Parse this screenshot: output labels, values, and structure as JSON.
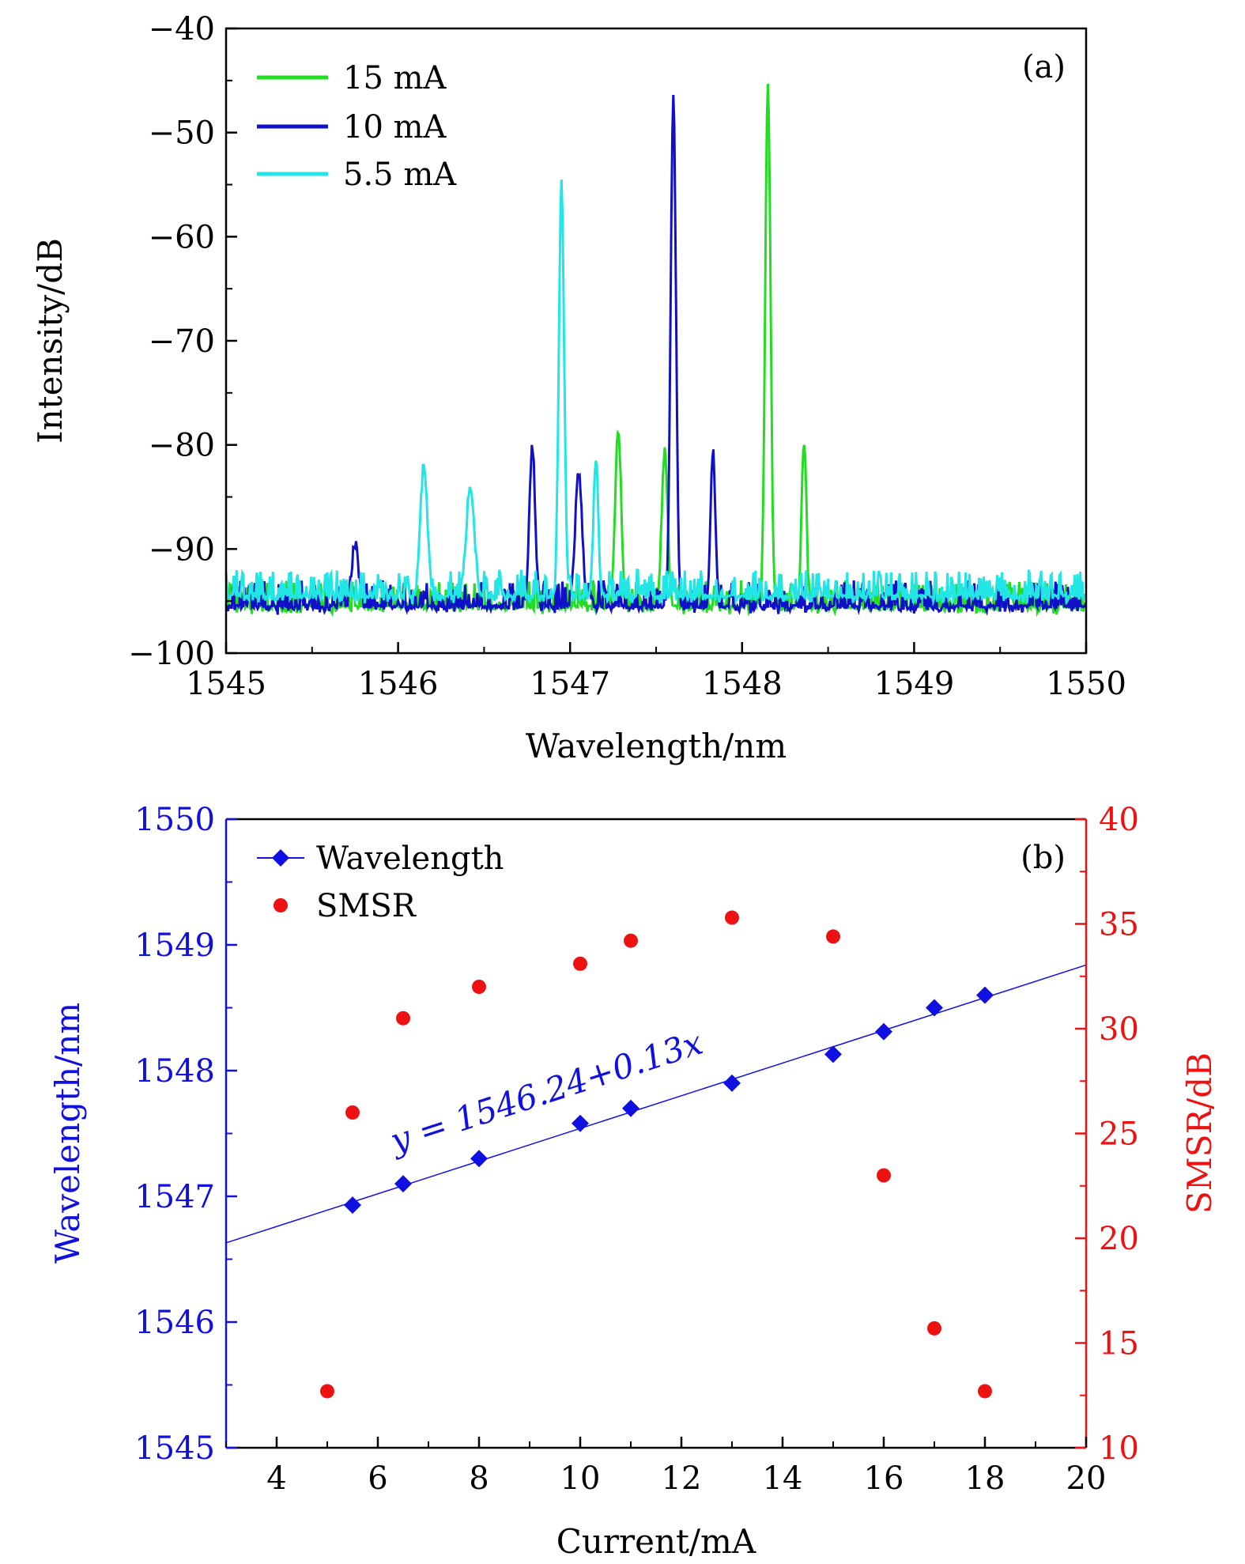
{
  "chart_data": [
    {
      "type": "line",
      "panel_label": "(a)",
      "xlabel": "Wavelength/nm",
      "ylabel": "Intensity/dB",
      "xlim": [
        1545,
        1550
      ],
      "ylim": [
        -100,
        -40
      ],
      "xticks": [
        "1545",
        "1546",
        "1547",
        "1548",
        "1549",
        "1550"
      ],
      "yticks": [
        "−100",
        "−90",
        "−80",
        "−70",
        "−60",
        "−50",
        "−40"
      ],
      "grid": false,
      "legend_position": "top-left",
      "series": [
        {
          "name": "15 mA",
          "color": "#22dd22",
          "peaks": [
            [
              1547.28,
              -78.5,
              0.025
            ],
            [
              1547.55,
              -80.5,
              0.025
            ],
            [
              1548.15,
              -45.3,
              0.022
            ],
            [
              1548.36,
              -79.5,
              0.02
            ]
          ],
          "noise_floor": -96
        },
        {
          "name": "10 mA",
          "color": "#1010c8",
          "peaks": [
            [
              1545.75,
              -89.5,
              0.03
            ],
            [
              1546.78,
              -80.2,
              0.025
            ],
            [
              1547.05,
              -82.5,
              0.03
            ],
            [
              1547.6,
              -46.5,
              0.022
            ],
            [
              1547.83,
              -80.5,
              0.02
            ]
          ],
          "noise_floor": -96
        },
        {
          "name": "5.5 mA",
          "color": "#22e5e5",
          "peaks": [
            [
              1546.15,
              -82,
              0.03
            ],
            [
              1546.42,
              -84,
              0.035
            ],
            [
              1546.95,
              -55,
              0.022
            ],
            [
              1547.15,
              -81.5,
              0.02
            ]
          ],
          "noise_floor": -95
        }
      ]
    },
    {
      "type": "scatter",
      "panel_label": "(b)",
      "xlabel": "Current/mA",
      "ylabel": "Wavelength/nm",
      "y2label": "SMSR/dB",
      "xlim": [
        3,
        20
      ],
      "ylim": [
        1545,
        1550
      ],
      "y2lim": [
        10,
        40
      ],
      "xticks": [
        "4",
        "6",
        "8",
        "10",
        "12",
        "14",
        "16",
        "18",
        "20"
      ],
      "yticks": [
        "1545",
        "1546",
        "1547",
        "1548",
        "1549",
        "1550"
      ],
      "y2ticks": [
        "10",
        "15",
        "20",
        "25",
        "30",
        "35",
        "40"
      ],
      "grid": false,
      "legend_position": "top-left",
      "fit_equation": "y = 1546.24+0.13x",
      "fit": {
        "intercept": 1546.24,
        "slope": 0.13
      },
      "series": [
        {
          "name": "Wavelength",
          "color": "#1010e0",
          "axis": "left",
          "marker": "diamond",
          "x": [
            5.5,
            6.5,
            8,
            10,
            11,
            13,
            15,
            16,
            17,
            18
          ],
          "y": [
            1546.93,
            1547.1,
            1547.3,
            1547.58,
            1547.7,
            1547.9,
            1548.13,
            1548.31,
            1548.5,
            1548.6
          ]
        },
        {
          "name": "SMSR",
          "color": "#ee1111",
          "axis": "right",
          "marker": "circle",
          "x": [
            5,
            5.5,
            6.5,
            8,
            10,
            11,
            13,
            15,
            16,
            17,
            18
          ],
          "y": [
            12.7,
            26,
            30.5,
            32,
            33.1,
            34.2,
            35.3,
            34.4,
            23,
            15.7,
            12.7
          ]
        }
      ]
    }
  ]
}
